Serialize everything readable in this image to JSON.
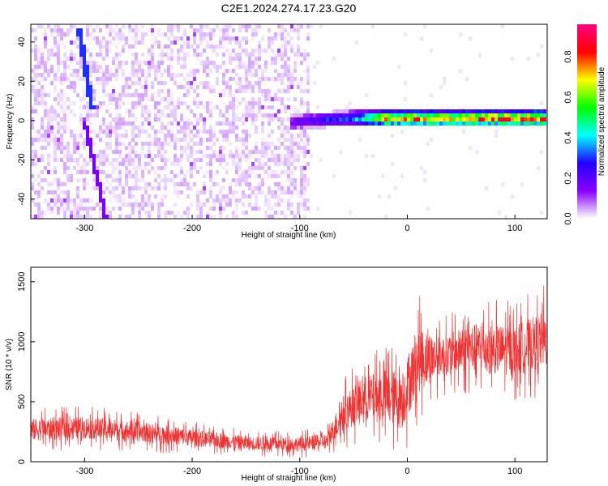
{
  "title": "C2E1.2024.274.17.23.G20",
  "chart_data": [
    {
      "type": "heatmap",
      "xlabel": "Height of straight line (km)",
      "ylabel": "Frequency (Hz)",
      "xlim": [
        -350,
        130
      ],
      "ylim": [
        -50,
        49
      ],
      "xticks": [
        -300,
        -200,
        -100,
        0,
        100
      ],
      "yticks": [
        -40,
        -20,
        0,
        20,
        40
      ],
      "colorbar": {
        "label": "Normalized spectral amplitude",
        "range": [
          0,
          0.96
        ],
        "ticks": [
          0.0,
          0.2,
          0.4,
          0.6,
          0.8
        ],
        "colormap": [
          "#ffffff",
          "#8a00ff",
          "#2200ff",
          "#00ffff",
          "#00ff00",
          "#ffff00",
          "#ff0000",
          "#ff0080"
        ]
      },
      "features": {
        "noise_region_x": [
          -350,
          -90
        ],
        "noise_amplitude": 0.12,
        "streak_points": [
          {
            "x": -305,
            "y": 47
          },
          {
            "x": -293,
            "y": 5
          }
        ],
        "streak_amplitude": 0.3,
        "faint_trace_points": [
          {
            "x": -300,
            "y": 0
          },
          {
            "x": -280,
            "y": -50
          }
        ],
        "band_x": [
          -110,
          130
        ],
        "band_center_y": [
          {
            "x": -110,
            "y": -1
          },
          {
            "x": -60,
            "y": 1
          },
          {
            "x": 0,
            "y": 1
          },
          {
            "x": 130,
            "y": 1
          }
        ],
        "band_halfwidth": 4,
        "band_amplitude": [
          {
            "x": -110,
            "y": 0.2
          },
          {
            "x": -50,
            "y": 0.35
          },
          {
            "x": -20,
            "y": 0.8
          },
          {
            "x": 130,
            "y": 0.9
          }
        ]
      }
    },
    {
      "type": "line",
      "xlabel": "Height of straight line (km)",
      "ylabel": "SNR (10 * v/v)",
      "xlim": [
        -350,
        130
      ],
      "ylim": [
        0,
        1620
      ],
      "xticks": [
        -300,
        -200,
        -100,
        0,
        100
      ],
      "yticks": [
        0,
        500,
        1000,
        1500
      ],
      "color": "#ee3333",
      "envelope": [
        {
          "x": -350,
          "low": 80,
          "high": 450
        },
        {
          "x": -300,
          "low": 100,
          "high": 470
        },
        {
          "x": -250,
          "low": 80,
          "high": 420
        },
        {
          "x": -200,
          "low": 60,
          "high": 340
        },
        {
          "x": -150,
          "low": 40,
          "high": 270
        },
        {
          "x": -100,
          "low": 30,
          "high": 260
        },
        {
          "x": -75,
          "low": 40,
          "high": 300
        },
        {
          "x": -60,
          "low": 100,
          "high": 700
        },
        {
          "x": -40,
          "low": 150,
          "high": 900
        },
        {
          "x": -20,
          "low": 100,
          "high": 1000
        },
        {
          "x": -5,
          "low": 20,
          "high": 1000
        },
        {
          "x": 10,
          "low": 300,
          "high": 1400
        },
        {
          "x": 30,
          "low": 550,
          "high": 1200
        },
        {
          "x": 60,
          "low": 550,
          "high": 1350
        },
        {
          "x": 100,
          "low": 500,
          "high": 1350
        },
        {
          "x": 130,
          "low": 550,
          "high": 1500
        }
      ]
    }
  ]
}
